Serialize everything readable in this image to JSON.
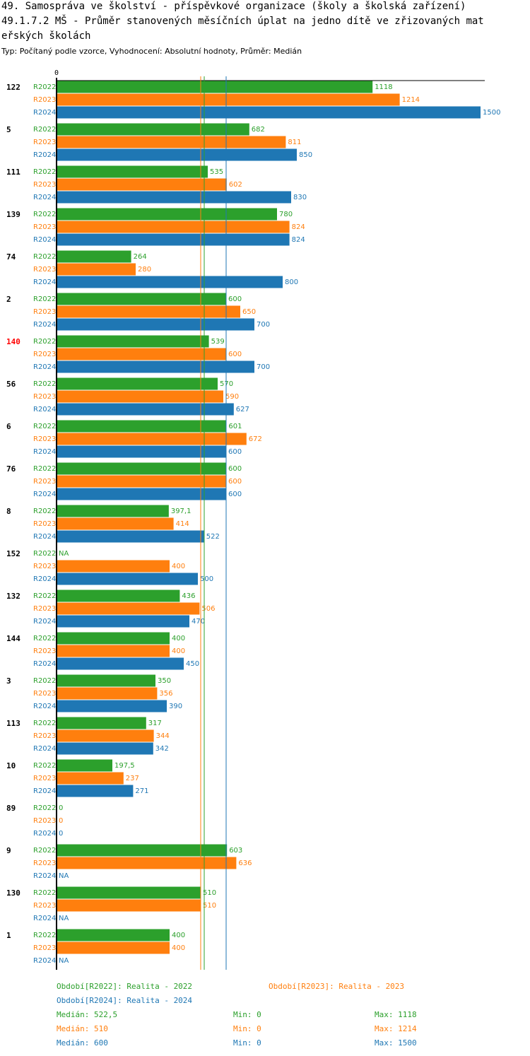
{
  "header": {
    "title_line1": "49. Samospráva ve školství - příspěvkové organizace (školy a školská zařízení)",
    "title_line2": "49.1.7.2 MŠ - Průměr stanovených měsíčních úplat na jedno dítě ve zřizovaných mat",
    "title_line3": "eřských školách",
    "subtitle": "Typ: Počítaný podle vzorce, Vyhodnocení: Absolutní hodnoty, Průměr: Medián"
  },
  "colors": {
    "R2022": "#2ca02c",
    "R2023": "#ff7f0e",
    "R2024": "#1f77b4",
    "highlight": "#ff0000",
    "axis": "#000000"
  },
  "chart_data": {
    "type": "bar",
    "orientation": "horizontal",
    "axis_zero_label": "0",
    "xlim": [
      0,
      1500
    ],
    "series_names": [
      "R2022",
      "R2023",
      "R2024"
    ],
    "highlighted_category": "140",
    "categories": [
      "122",
      "5",
      "111",
      "139",
      "74",
      "2",
      "140",
      "56",
      "6",
      "76",
      "8",
      "152",
      "132",
      "144",
      "3",
      "113",
      "10",
      "89",
      "9",
      "130",
      "1"
    ],
    "series": [
      {
        "name": "R2022",
        "values": [
          1118,
          682,
          535,
          780,
          264,
          600,
          539,
          570,
          601,
          600,
          397.1,
          null,
          436,
          400,
          350,
          317,
          197.5,
          0,
          603,
          510,
          400
        ],
        "labels": [
          "1118",
          "682",
          "535",
          "780",
          "264",
          "600",
          "539",
          "570",
          "601",
          "600",
          "397,1",
          "NA",
          "436",
          "400",
          "350",
          "317",
          "197,5",
          "0",
          "603",
          "510",
          "400"
        ]
      },
      {
        "name": "R2023",
        "values": [
          1214,
          811,
          602,
          824,
          280,
          650,
          600,
          590,
          672,
          600,
          414,
          400,
          506,
          400,
          356,
          344,
          237,
          0,
          636,
          510,
          400
        ],
        "labels": [
          "1214",
          "811",
          "602",
          "824",
          "280",
          "650",
          "600",
          "590",
          "672",
          "600",
          "414",
          "400",
          "506",
          "400",
          "356",
          "344",
          "237",
          "0",
          "636",
          "510",
          "400"
        ]
      },
      {
        "name": "R2024",
        "values": [
          1500,
          850,
          830,
          824,
          800,
          700,
          700,
          627,
          600,
          600,
          522,
          500,
          470,
          450,
          390,
          342,
          271,
          0,
          null,
          null,
          null
        ],
        "labels": [
          "1500",
          "850",
          "830",
          "824",
          "800",
          "700",
          "700",
          "627",
          "600",
          "600",
          "522",
          "500",
          "470",
          "450",
          "390",
          "342",
          "271",
          "0",
          "NA",
          "NA",
          "NA"
        ]
      }
    ],
    "median_lines": {
      "R2022": 522.5,
      "R2023": 510,
      "R2024": 600
    }
  },
  "legend": {
    "period_R2022": "Období[R2022]: Realita - 2022",
    "period_R2023": "Období[R2023]: Realita - 2023",
    "period_R2024": "Období[R2024]: Realita - 2024",
    "stats": [
      {
        "series": "R2022",
        "median": "Medián: 522,5",
        "min": "Min: 0",
        "max": "Max: 1118"
      },
      {
        "series": "R2023",
        "median": "Medián: 510",
        "min": "Min: 0",
        "max": "Max: 1214"
      },
      {
        "series": "R2024",
        "median": "Medián: 600",
        "min": "Min: 0",
        "max": "Max: 1500"
      }
    ]
  }
}
